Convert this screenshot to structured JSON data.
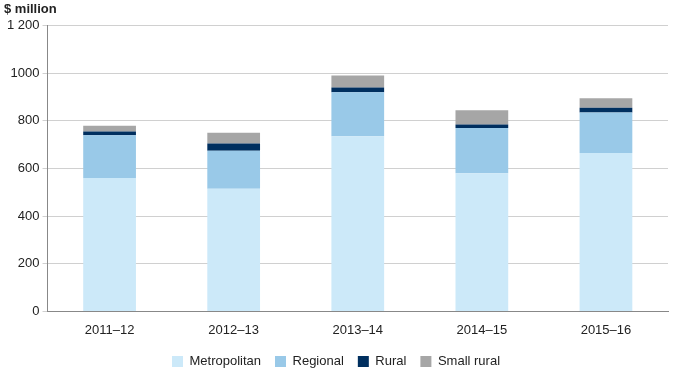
{
  "chart_data": {
    "type": "bar",
    "stacked": true,
    "ylabel": "$ million",
    "categories": [
      "2011–12",
      "2012–13",
      "2013–14",
      "2014–15",
      "2015–16"
    ],
    "series": [
      {
        "name": "Metropolitan",
        "color": "#cce9f9",
        "values": [
          560,
          515,
          735,
          580,
          665
        ]
      },
      {
        "name": "Regional",
        "color": "#99c9e8",
        "values": [
          180,
          160,
          185,
          190,
          170
        ]
      },
      {
        "name": "Rural",
        "color": "#002f5f",
        "values": [
          15,
          30,
          20,
          15,
          20
        ]
      },
      {
        "name": "Small rural",
        "color": "#a6a6a6",
        "values": [
          25,
          45,
          50,
          60,
          40
        ]
      }
    ],
    "ylim": [
      0,
      1200
    ],
    "yticks": [
      0,
      200,
      400,
      600,
      800,
      1000,
      {
        "value": 1200,
        "label": "1 200"
      }
    ],
    "grid": true,
    "legend": "bottom"
  }
}
